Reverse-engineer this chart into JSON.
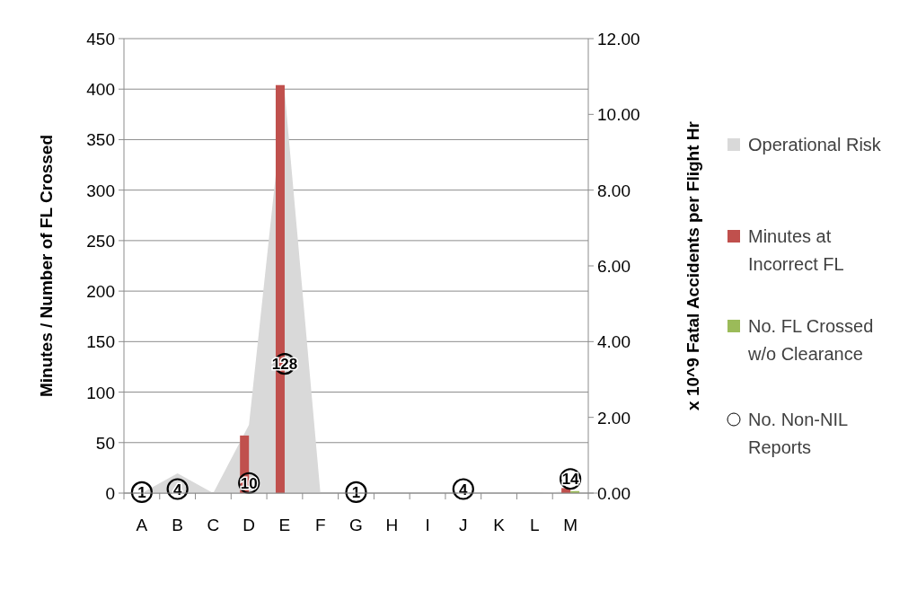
{
  "chart_data": {
    "type": "bar",
    "categories": [
      "A",
      "B",
      "C",
      "D",
      "E",
      "F",
      "G",
      "H",
      "I",
      "J",
      "K",
      "L",
      "M"
    ],
    "ylabel": "Minutes / Number of FL Crossed",
    "y2label": "x 10^9 Fatal Accidents per Flight Hr",
    "ylim": [
      0,
      450
    ],
    "yticks": [
      0,
      50,
      100,
      150,
      200,
      250,
      300,
      350,
      400,
      450
    ],
    "y2lim": [
      0,
      12
    ],
    "y2ticks": [
      {
        "value": 0,
        "label": "0.00"
      },
      {
        "value": 2,
        "label": "2.00"
      },
      {
        "value": 4,
        "label": "4.00"
      },
      {
        "value": 6,
        "label": "6.00"
      },
      {
        "value": 8,
        "label": "8.00"
      },
      {
        "value": 10,
        "label": "10.00"
      },
      {
        "value": 12,
        "label": "12.00"
      }
    ],
    "grid": "y",
    "legend": "right",
    "series": [
      {
        "name": "Operational Risk",
        "type": "area",
        "axis": "y2",
        "color": "#d9d9d9",
        "values": [
          0,
          0.52,
          0,
          1.8,
          10.6,
          0,
          0,
          0,
          0,
          0,
          0,
          0,
          0.05
        ]
      },
      {
        "name": "Minutes at Incorrect FL",
        "color": "#c0504d",
        "values": [
          0,
          0,
          0,
          57,
          404,
          0,
          0,
          0,
          0,
          0,
          0,
          0,
          5
        ]
      },
      {
        "name": "No. FL Crossed w/o Clearance",
        "color": "#9bbb59",
        "values": [
          0,
          0,
          0,
          0,
          0,
          0,
          0,
          0,
          0,
          0,
          0,
          0,
          2
        ]
      },
      {
        "name": "No. Non-NIL Reports",
        "type": "scatter",
        "marker": "circle",
        "color": "#000000",
        "values": [
          1,
          4,
          null,
          10,
          128,
          null,
          1,
          null,
          null,
          4,
          null,
          null,
          14
        ],
        "value_labels": [
          "1",
          "4",
          null,
          "10",
          "128",
          null,
          "1",
          null,
          null,
          "4",
          null,
          null,
          "14"
        ]
      }
    ]
  }
}
